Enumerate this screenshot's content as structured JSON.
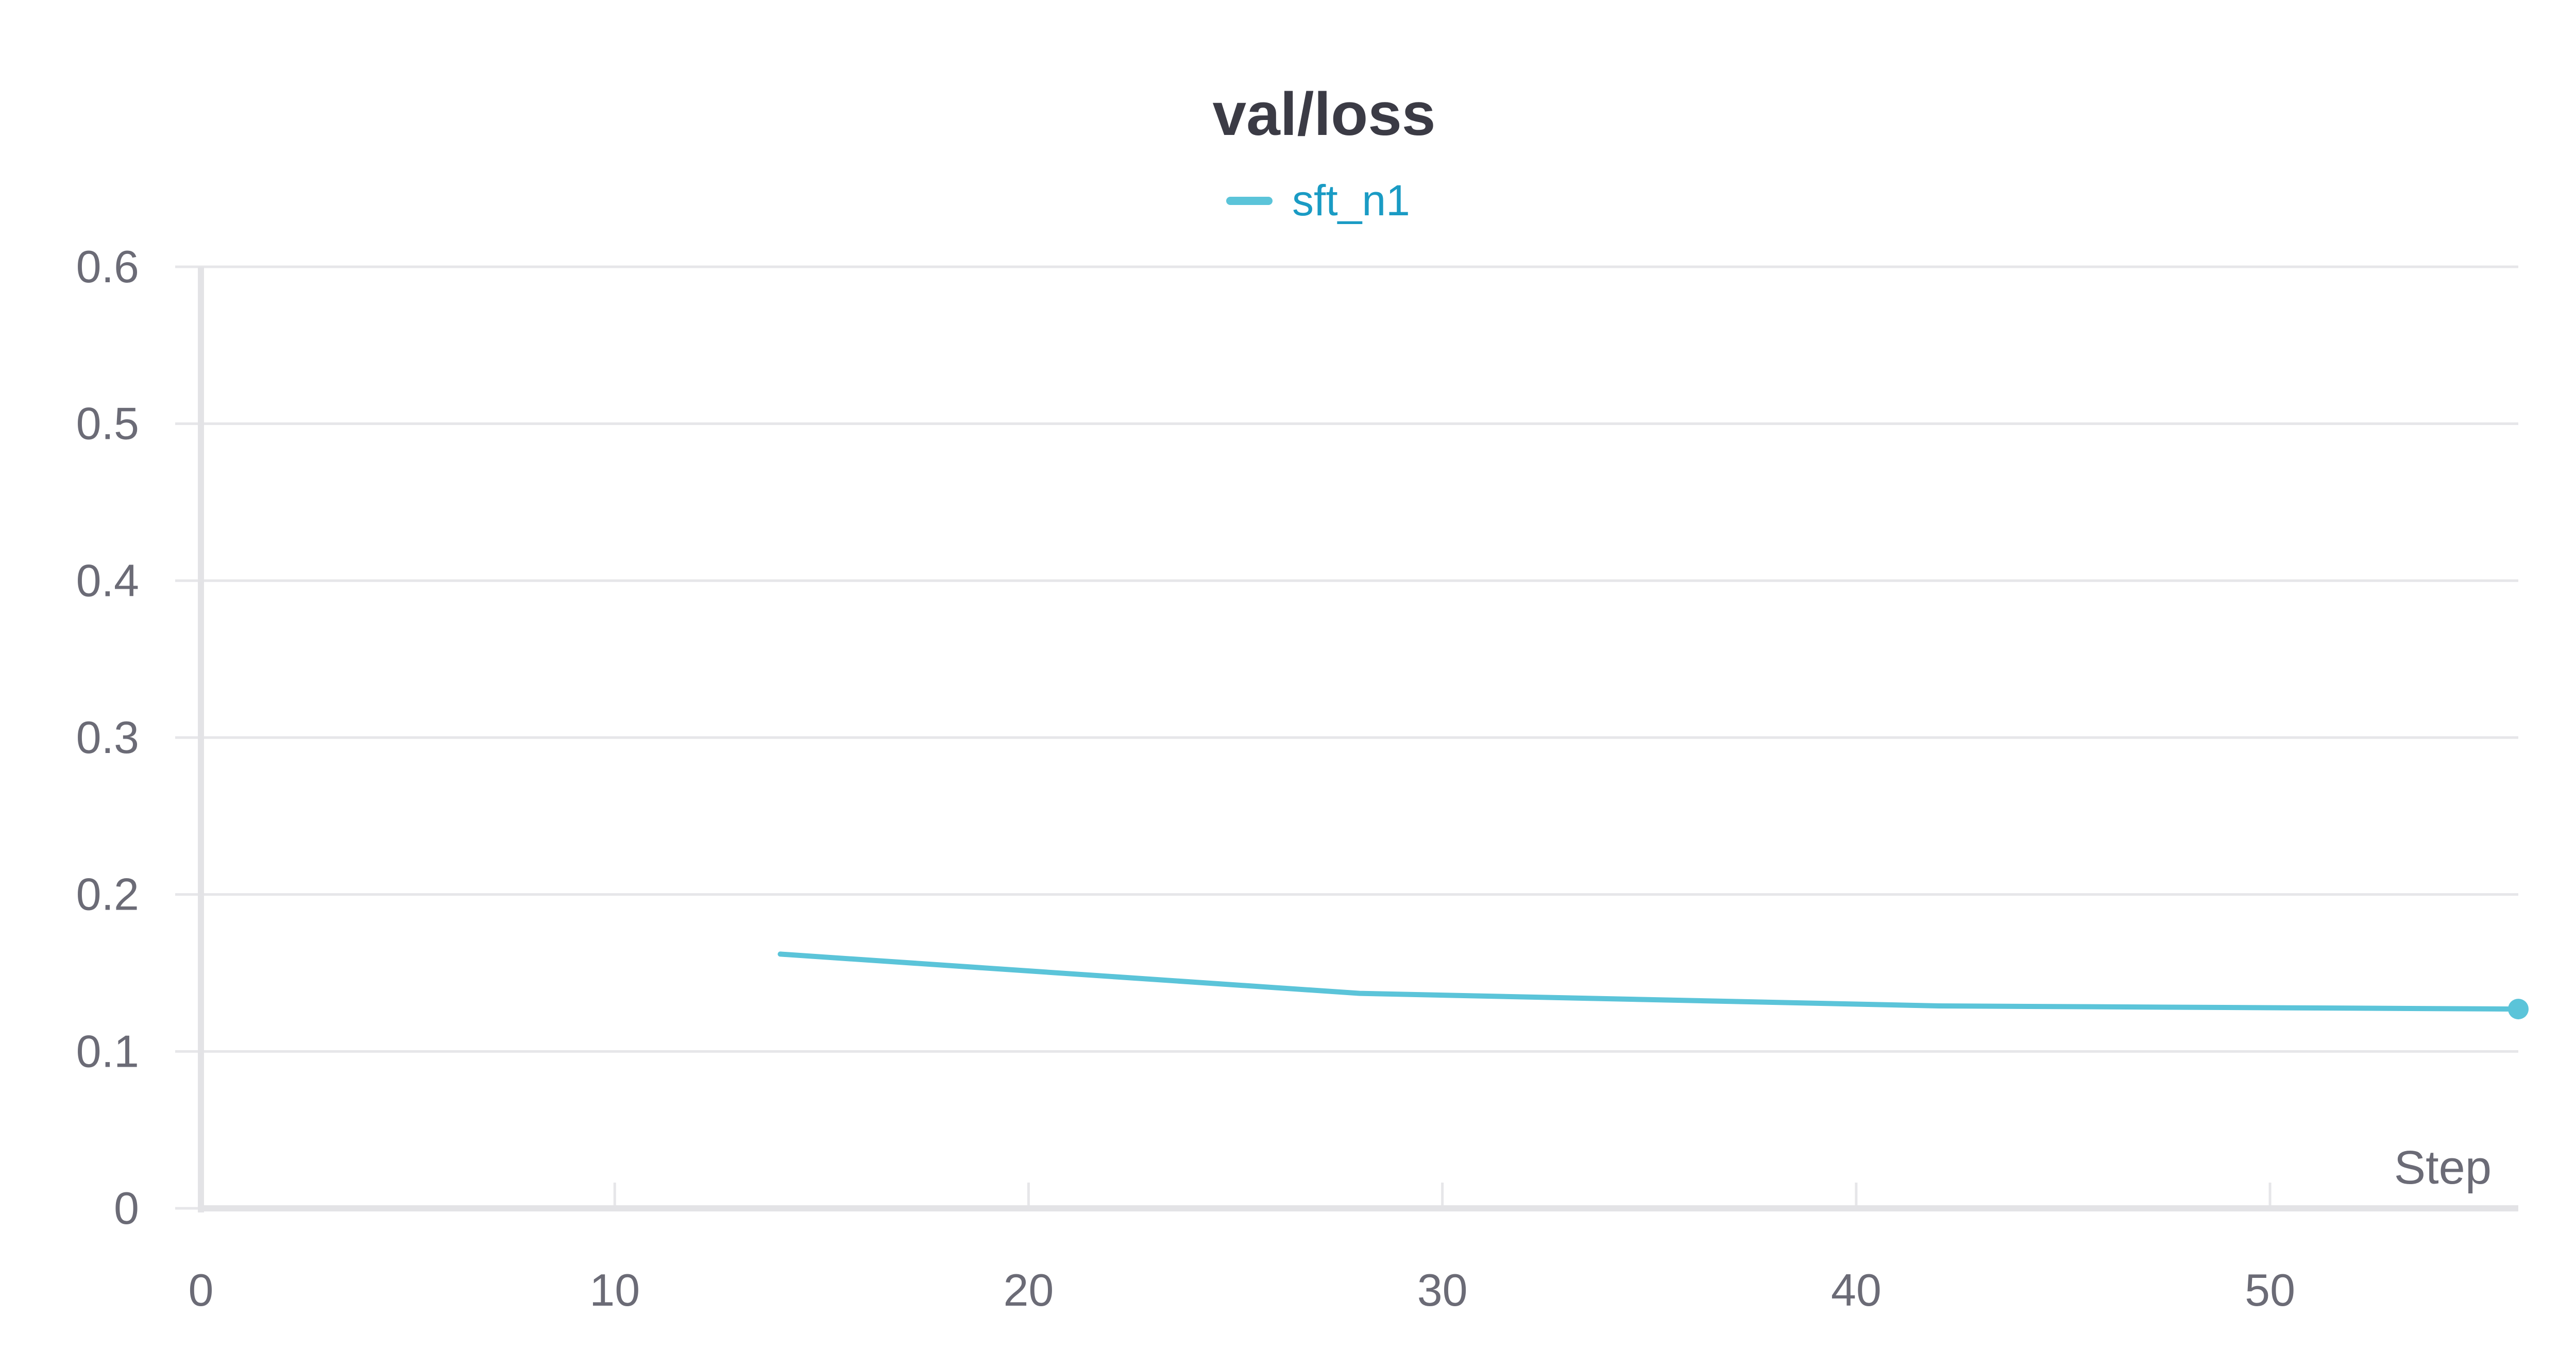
{
  "chart_data": {
    "type": "line",
    "title": "val/loss",
    "xlabel": "Step",
    "ylabel": "",
    "xlim": [
      0,
      56
    ],
    "ylim": [
      0,
      0.6
    ],
    "x_ticks": [
      0,
      10,
      20,
      30,
      40,
      50
    ],
    "y_ticks": [
      0,
      0.1,
      0.2,
      0.3,
      0.4,
      0.5,
      0.6
    ],
    "grid": true,
    "legend_position": "top-center",
    "series": [
      {
        "name": "sft_n1",
        "color": "#5bc4d9",
        "x": [
          14,
          28,
          42,
          56
        ],
        "y": [
          0.162,
          0.137,
          0.129,
          0.127
        ]
      }
    ]
  }
}
